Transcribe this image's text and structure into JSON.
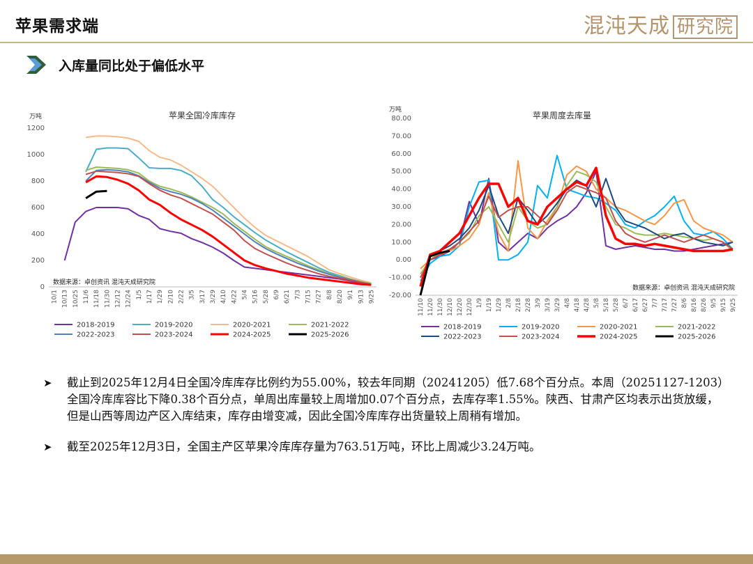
{
  "header": {
    "title": "苹果需求端",
    "logo_main": "混沌天成",
    "logo_box": "研究院"
  },
  "subtitle": "入库量同比处于偏低水平",
  "bullets": [
    "截止到2025年12月4日全国冷库库存比例约为55.00%，较去年同期（20241205）低7.68个百分点。本周（20251127-1203）全国冷库库容比下降0.38个百分点，单周出库量较上周增加0.07个百分点，去库存率1.55%。陕西、甘肃产区均表示出货放缓，但是山西等周边产区入库结束，库存由增变减，因此全国冷库库存出货量较上周稍有增加。",
    "截至2025年12月3日，全国主产区苹果冷库库存量为763.51万吨，环比上周减少3.24万吨。"
  ],
  "chart_data": [
    {
      "type": "line",
      "title": "苹果全国冷库库存",
      "ylabel": "万吨",
      "source": "数据来源：卓创资讯 混沌天成研究院",
      "ylim": [
        0,
        1200
      ],
      "yticks": [
        0,
        200,
        400,
        600,
        800,
        1000,
        1200
      ],
      "categories": [
        "10/1",
        "10/13",
        "10/25",
        "11/6",
        "11/18",
        "11/30",
        "12/12",
        "12/24",
        "1/5",
        "1/17",
        "1/29",
        "2/10",
        "2/22",
        "3/5",
        "3/17",
        "3/29",
        "4/10",
        "4/22",
        "5/4",
        "5/16",
        "5/28",
        "6/9",
        "6/21",
        "7/3",
        "7/15",
        "7/27",
        "8/8",
        "8/20",
        "9/1",
        "9/13",
        "9/25"
      ],
      "series": [
        {
          "name": "2018-2019",
          "color": "#7030a0",
          "width": 2,
          "values": [
            null,
            200,
            490,
            570,
            600,
            600,
            600,
            590,
            540,
            510,
            440,
            420,
            405,
            365,
            335,
            300,
            255,
            200,
            150,
            140,
            130,
            120,
            110,
            100,
            90,
            80,
            70,
            60,
            45,
            30,
            20
          ]
        },
        {
          "name": "2019-2020",
          "color": "#4bacc6",
          "width": 2,
          "values": [
            null,
            null,
            null,
            870,
            1040,
            1050,
            1050,
            1045,
            975,
            900,
            895,
            895,
            880,
            840,
            760,
            660,
            600,
            530,
            470,
            410,
            355,
            310,
            265,
            225,
            185,
            145,
            110,
            85,
            60,
            40,
            25
          ]
        },
        {
          "name": "2020-2021",
          "color": "#f7b989",
          "width": 2,
          "values": [
            null,
            null,
            null,
            1130,
            1140,
            1140,
            1135,
            1125,
            1100,
            1030,
            980,
            960,
            920,
            870,
            820,
            760,
            680,
            600,
            520,
            450,
            390,
            350,
            310,
            270,
            230,
            180,
            130,
            100,
            75,
            50,
            30
          ]
        },
        {
          "name": "2021-2022",
          "color": "#9bbb59",
          "width": 2,
          "values": [
            null,
            null,
            null,
            880,
            905,
            900,
            895,
            885,
            860,
            800,
            760,
            740,
            715,
            680,
            640,
            600,
            550,
            480,
            420,
            360,
            305,
            265,
            230,
            195,
            160,
            130,
            100,
            80,
            60,
            40,
            25
          ]
        },
        {
          "name": "2022-2023",
          "color": "#4f81bd",
          "width": 2,
          "values": [
            null,
            null,
            null,
            800,
            880,
            885,
            880,
            870,
            840,
            790,
            745,
            720,
            700,
            670,
            630,
            580,
            520,
            460,
            400,
            340,
            290,
            250,
            215,
            180,
            150,
            120,
            95,
            75,
            55,
            35,
            20
          ]
        },
        {
          "name": "2023-2024",
          "color": "#c0504d",
          "width": 2,
          "values": [
            null,
            null,
            null,
            850,
            875,
            870,
            865,
            855,
            835,
            780,
            730,
            695,
            670,
            630,
            590,
            550,
            490,
            430,
            350,
            290,
            250,
            215,
            180,
            150,
            125,
            100,
            80,
            65,
            50,
            35,
            20
          ]
        },
        {
          "name": "2024-2025",
          "color": "#ff0000",
          "width": 3,
          "values": [
            null,
            null,
            null,
            790,
            835,
            830,
            810,
            780,
            730,
            660,
            620,
            560,
            510,
            470,
            430,
            380,
            320,
            260,
            200,
            165,
            140,
            120,
            100,
            85,
            70,
            60,
            50,
            40,
            30,
            20,
            15
          ]
        },
        {
          "name": "2025-2026",
          "color": "#000000",
          "width": 3,
          "values": [
            null,
            null,
            null,
            670,
            720,
            725,
            null,
            null,
            null,
            null,
            null,
            null,
            null,
            null,
            null,
            null,
            null,
            null,
            null,
            null,
            null,
            null,
            null,
            null,
            null,
            null,
            null,
            null,
            null,
            null,
            null
          ]
        }
      ]
    },
    {
      "type": "line",
      "title": "苹果周度去库量",
      "ylabel": "万吨",
      "source": "数据来源：卓创资讯 混沌天成研究院",
      "ylim": [
        -20,
        80
      ],
      "yticks": [
        "-20.00",
        "-10.00",
        "0.00",
        "10.00",
        "20.00",
        "30.00",
        "40.00",
        "50.00",
        "60.00",
        "70.00",
        "80.00"
      ],
      "categories": [
        "11/10",
        "11/20",
        "11/30",
        "12/10",
        "12/20",
        "12/30",
        "1/9",
        "1/19",
        "1/29",
        "2/8",
        "2/18",
        "2/28",
        "3/9",
        "3/19",
        "3/29",
        "4/8",
        "4/18",
        "4/28",
        "5/8",
        "5/18",
        "5/28",
        "6/7",
        "6/17",
        "6/27",
        "7/7",
        "7/17",
        "7/27",
        "8/6",
        "8/16",
        "8/26",
        "9/5",
        "9/15",
        "9/25"
      ],
      "series": [
        {
          "name": "2018-2019",
          "color": "#7030a0",
          "width": 2,
          "values": [
            -10,
            0,
            2,
            5,
            10,
            33,
            20,
            46,
            10,
            5,
            10,
            15,
            12,
            18,
            22,
            25,
            30,
            38,
            50,
            8,
            6,
            7,
            8,
            7,
            6,
            6,
            5,
            5,
            6,
            7,
            8,
            9,
            10
          ]
        },
        {
          "name": "2019-2020",
          "color": "#00b0f0",
          "width": 2,
          "values": [
            -12,
            -2,
            2,
            3,
            8,
            30,
            44,
            45,
            0,
            0,
            3,
            10,
            42,
            35,
            59,
            40,
            38,
            36,
            35,
            32,
            28,
            20,
            18,
            22,
            25,
            30,
            36,
            22,
            15,
            14,
            16,
            12,
            6
          ]
        },
        {
          "name": "2020-2021",
          "color": "#f79646",
          "width": 2,
          "values": [
            -5,
            0,
            3,
            5,
            8,
            12,
            20,
            38,
            15,
            5,
            56,
            18,
            12,
            22,
            30,
            48,
            53,
            50,
            40,
            35,
            30,
            28,
            25,
            22,
            20,
            25,
            32,
            34,
            22,
            18,
            16,
            14,
            10
          ]
        },
        {
          "name": "2021-2022",
          "color": "#9bbb59",
          "width": 2,
          "values": [
            -8,
            0,
            4,
            6,
            10,
            15,
            25,
            30,
            20,
            10,
            30,
            22,
            18,
            20,
            30,
            42,
            50,
            48,
            44,
            30,
            20,
            18,
            15,
            14,
            14,
            15,
            14,
            13,
            12,
            11,
            12,
            10,
            5
          ]
        },
        {
          "name": "2022-2023",
          "color": "#1f497d",
          "width": 2,
          "values": [
            -15,
            2,
            5,
            8,
            12,
            18,
            28,
            42,
            25,
            15,
            35,
            28,
            20,
            25,
            32,
            40,
            45,
            42,
            30,
            46,
            30,
            22,
            20,
            18,
            15,
            12,
            14,
            15,
            12,
            10,
            9,
            8,
            10
          ]
        },
        {
          "name": "2023-2024",
          "color": "#c0504d",
          "width": 2,
          "values": [
            -10,
            0,
            3,
            6,
            10,
            16,
            22,
            36,
            24,
            28,
            30,
            30,
            25,
            20,
            28,
            38,
            42,
            40,
            38,
            35,
            22,
            15,
            12,
            10,
            12,
            14,
            12,
            10,
            12,
            14,
            12,
            10,
            6
          ]
        },
        {
          "name": "2024-2025",
          "color": "#ff0000",
          "width": 3.5,
          "values": [
            -15,
            3,
            5,
            10,
            15,
            25,
            35,
            43,
            43,
            30,
            35,
            22,
            20,
            30,
            35,
            40,
            44,
            42,
            52,
            25,
            12,
            9,
            9,
            8,
            9,
            8,
            7,
            6,
            5,
            5,
            5,
            5,
            6
          ]
        },
        {
          "name": "2025-2026",
          "color": "#000000",
          "width": 3,
          "values": [
            -20,
            2,
            4,
            5,
            null,
            null,
            null,
            null,
            null,
            null,
            null,
            null,
            null,
            null,
            null,
            null,
            null,
            null,
            null,
            null,
            null,
            null,
            null,
            null,
            null,
            null,
            null,
            null,
            null,
            null,
            null,
            null,
            null
          ]
        }
      ]
    }
  ]
}
